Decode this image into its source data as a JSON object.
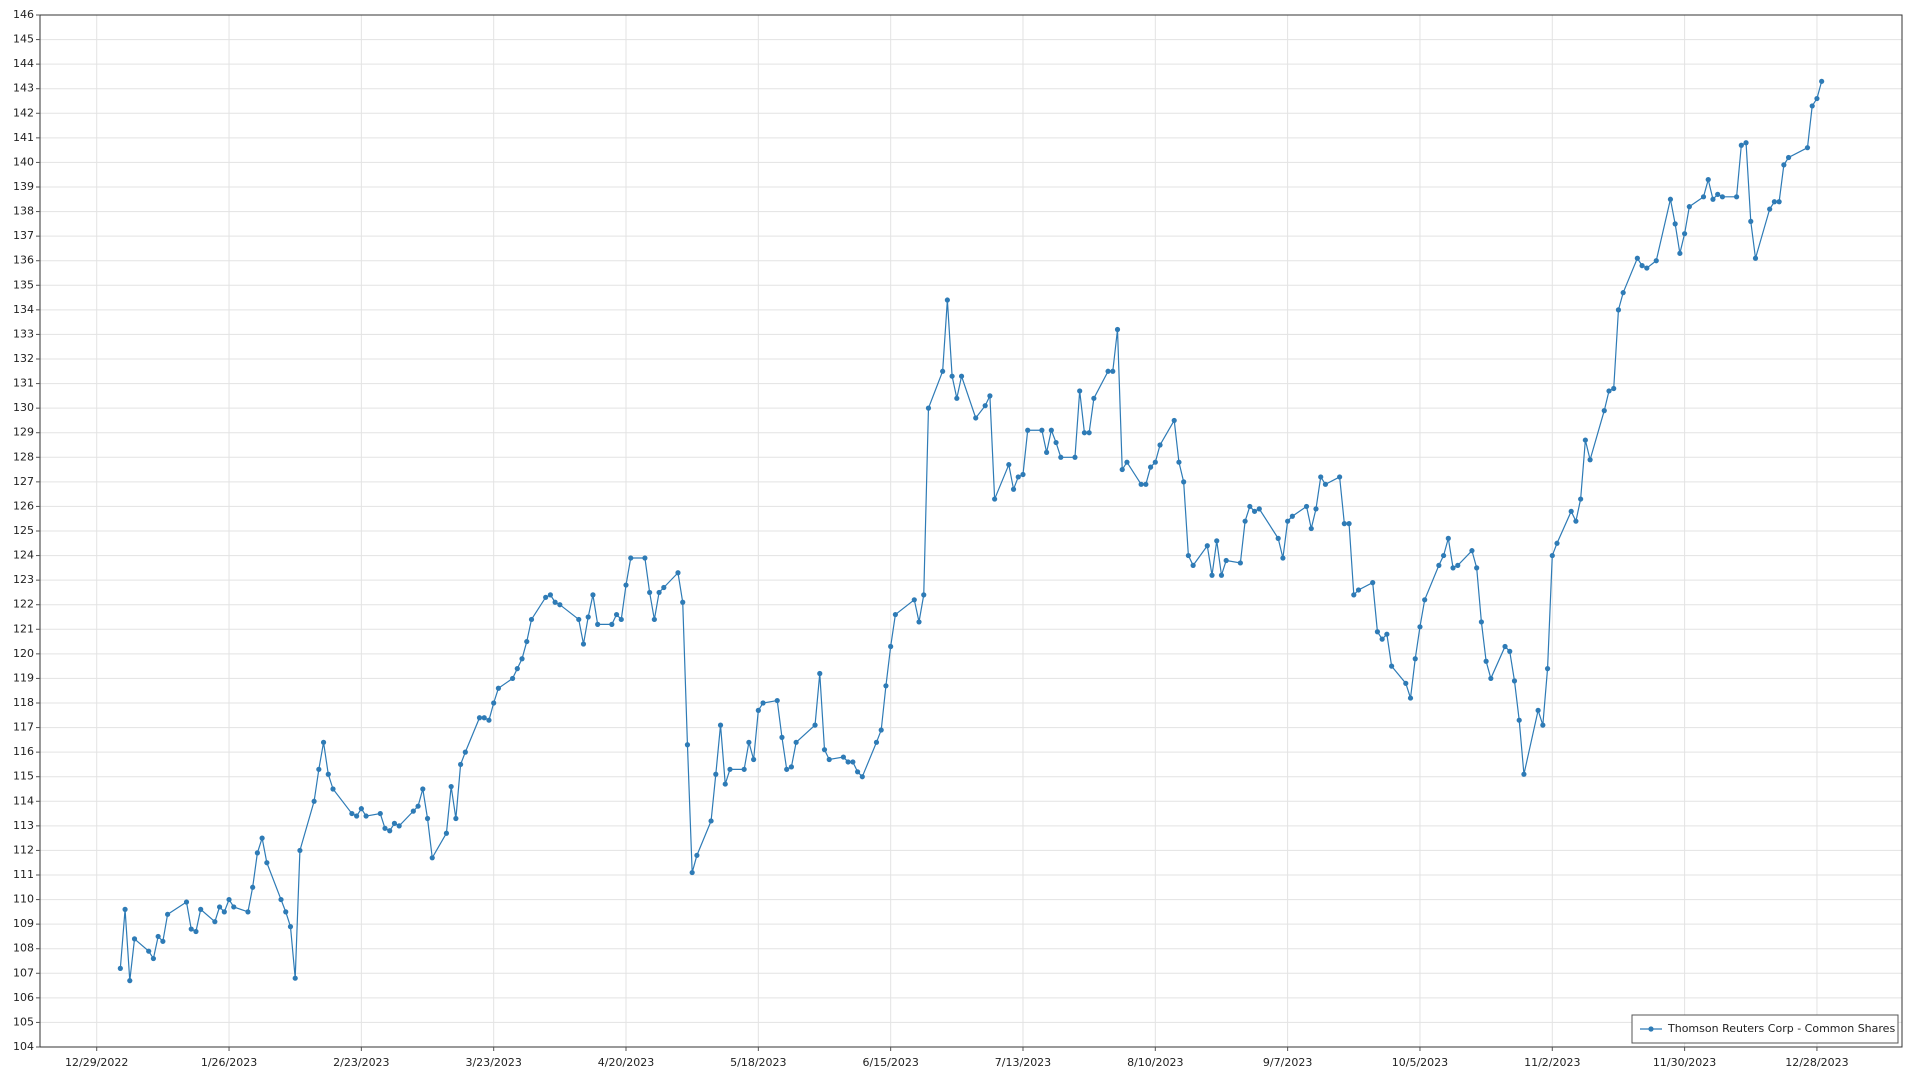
{
  "chart_data": {
    "type": "line",
    "x": [
      "2023-01-03",
      "2023-01-04",
      "2023-01-05",
      "2023-01-06",
      "2023-01-09",
      "2023-01-10",
      "2023-01-11",
      "2023-01-12",
      "2023-01-13",
      "2023-01-17",
      "2023-01-18",
      "2023-01-19",
      "2023-01-20",
      "2023-01-23",
      "2023-01-24",
      "2023-01-25",
      "2023-01-26",
      "2023-01-27",
      "2023-01-30",
      "2023-01-31",
      "2023-02-01",
      "2023-02-02",
      "2023-02-03",
      "2023-02-06",
      "2023-02-07",
      "2023-02-08",
      "2023-02-09",
      "2023-02-10",
      "2023-02-13",
      "2023-02-14",
      "2023-02-15",
      "2023-02-16",
      "2023-02-17",
      "2023-02-21",
      "2023-02-22",
      "2023-02-23",
      "2023-02-24",
      "2023-02-27",
      "2023-02-28",
      "2023-03-01",
      "2023-03-02",
      "2023-03-03",
      "2023-03-06",
      "2023-03-07",
      "2023-03-08",
      "2023-03-09",
      "2023-03-10",
      "2023-03-13",
      "2023-03-14",
      "2023-03-15",
      "2023-03-16",
      "2023-03-17",
      "2023-03-20",
      "2023-03-21",
      "2023-03-22",
      "2023-03-23",
      "2023-03-24",
      "2023-03-27",
      "2023-03-28",
      "2023-03-29",
      "2023-03-30",
      "2023-03-31",
      "2023-04-03",
      "2023-04-04",
      "2023-04-05",
      "2023-04-06",
      "2023-04-10",
      "2023-04-11",
      "2023-04-12",
      "2023-04-13",
      "2023-04-14",
      "2023-04-17",
      "2023-04-18",
      "2023-04-19",
      "2023-04-20",
      "2023-04-21",
      "2023-04-24",
      "2023-04-25",
      "2023-04-26",
      "2023-04-27",
      "2023-04-28",
      "2023-05-01",
      "2023-05-02",
      "2023-05-03",
      "2023-05-04",
      "2023-05-05",
      "2023-05-08",
      "2023-05-09",
      "2023-05-10",
      "2023-05-11",
      "2023-05-12",
      "2023-05-15",
      "2023-05-16",
      "2023-05-17",
      "2023-05-18",
      "2023-05-19",
      "2023-05-22",
      "2023-05-23",
      "2023-05-24",
      "2023-05-25",
      "2023-05-26",
      "2023-05-30",
      "2023-05-31",
      "2023-06-01",
      "2023-06-02",
      "2023-06-05",
      "2023-06-06",
      "2023-06-07",
      "2023-06-08",
      "2023-06-09",
      "2023-06-12",
      "2023-06-13",
      "2023-06-14",
      "2023-06-15",
      "2023-06-16",
      "2023-06-20",
      "2023-06-21",
      "2023-06-22",
      "2023-06-23",
      "2023-06-26",
      "2023-06-27",
      "2023-06-28",
      "2023-06-29",
      "2023-06-30",
      "2023-07-03",
      "2023-07-05",
      "2023-07-06",
      "2023-07-07",
      "2023-07-10",
      "2023-07-11",
      "2023-07-12",
      "2023-07-13",
      "2023-07-14",
      "2023-07-17",
      "2023-07-18",
      "2023-07-19",
      "2023-07-20",
      "2023-07-21",
      "2023-07-24",
      "2023-07-25",
      "2023-07-26",
      "2023-07-27",
      "2023-07-28",
      "2023-07-31",
      "2023-08-01",
      "2023-08-02",
      "2023-08-03",
      "2023-08-04",
      "2023-08-07",
      "2023-08-08",
      "2023-08-09",
      "2023-08-10",
      "2023-08-11",
      "2023-08-14",
      "2023-08-15",
      "2023-08-16",
      "2023-08-17",
      "2023-08-18",
      "2023-08-21",
      "2023-08-22",
      "2023-08-23",
      "2023-08-24",
      "2023-08-25",
      "2023-08-28",
      "2023-08-29",
      "2023-08-30",
      "2023-08-31",
      "2023-09-01",
      "2023-09-05",
      "2023-09-06",
      "2023-09-07",
      "2023-09-08",
      "2023-09-11",
      "2023-09-12",
      "2023-09-13",
      "2023-09-14",
      "2023-09-15",
      "2023-09-18",
      "2023-09-19",
      "2023-09-20",
      "2023-09-21",
      "2023-09-22",
      "2023-09-25",
      "2023-09-26",
      "2023-09-27",
      "2023-09-28",
      "2023-09-29",
      "2023-10-02",
      "2023-10-03",
      "2023-10-04",
      "2023-10-05",
      "2023-10-06",
      "2023-10-09",
      "2023-10-10",
      "2023-10-11",
      "2023-10-12",
      "2023-10-13",
      "2023-10-16",
      "2023-10-17",
      "2023-10-18",
      "2023-10-19",
      "2023-10-20",
      "2023-10-23",
      "2023-10-24",
      "2023-10-25",
      "2023-10-26",
      "2023-10-27",
      "2023-10-30",
      "2023-10-31",
      "2023-11-01",
      "2023-11-02",
      "2023-11-03",
      "2023-11-06",
      "2023-11-07",
      "2023-11-08",
      "2023-11-09",
      "2023-11-10",
      "2023-11-13",
      "2023-11-14",
      "2023-11-15",
      "2023-11-16",
      "2023-11-17",
      "2023-11-20",
      "2023-11-21",
      "2023-11-22",
      "2023-11-24",
      "2023-11-27",
      "2023-11-28",
      "2023-11-29",
      "2023-11-30",
      "2023-12-01",
      "2023-12-04",
      "2023-12-05",
      "2023-12-06",
      "2023-12-07",
      "2023-12-08",
      "2023-12-11",
      "2023-12-12",
      "2023-12-13",
      "2023-12-14",
      "2023-12-15",
      "2023-12-18",
      "2023-12-19",
      "2023-12-20",
      "2023-12-21",
      "2023-12-22",
      "2023-12-26",
      "2023-12-27",
      "2023-12-28",
      "2023-12-29"
    ],
    "series": [
      {
        "name": "Thomson Reuters Corp - Common Shares",
        "color": "#2e7bb6",
        "values": [
          107.2,
          109.6,
          106.7,
          108.4,
          107.9,
          107.6,
          108.5,
          108.3,
          109.4,
          109.9,
          108.8,
          108.7,
          109.6,
          109.1,
          109.7,
          109.5,
          110.0,
          109.7,
          109.5,
          110.5,
          111.9,
          112.5,
          111.5,
          110.0,
          109.5,
          108.9,
          106.8,
          112.0,
          114.0,
          115.3,
          116.4,
          115.1,
          114.5,
          113.5,
          113.4,
          113.7,
          113.4,
          113.5,
          112.9,
          112.8,
          113.1,
          113.0,
          113.6,
          113.8,
          114.5,
          113.3,
          111.7,
          112.7,
          114.6,
          113.3,
          115.5,
          116.0,
          117.4,
          117.4,
          117.3,
          118.0,
          118.6,
          119.0,
          119.4,
          119.8,
          120.5,
          121.4,
          122.3,
          122.4,
          122.1,
          122.0,
          121.4,
          120.4,
          121.5,
          122.4,
          121.2,
          121.2,
          121.6,
          121.4,
          122.8,
          123.9,
          123.9,
          122.5,
          121.4,
          122.5,
          122.7,
          123.3,
          122.1,
          116.3,
          111.1,
          111.8,
          113.2,
          115.1,
          117.1,
          114.7,
          115.3,
          115.3,
          116.4,
          115.7,
          117.7,
          118.0,
          118.1,
          116.6,
          115.3,
          115.4,
          116.4,
          117.1,
          119.2,
          116.1,
          115.7,
          115.8,
          115.6,
          115.6,
          115.2,
          115.0,
          116.4,
          116.9,
          118.7,
          120.3,
          121.6,
          122.2,
          121.3,
          122.4,
          130.0,
          131.5,
          134.4,
          131.3,
          130.4,
          131.3,
          129.6,
          130.1,
          130.5,
          126.3,
          127.7,
          126.7,
          127.2,
          127.3,
          129.1,
          129.1,
          128.2,
          129.1,
          128.6,
          128.0,
          128.0,
          130.7,
          129.0,
          129.0,
          130.4,
          131.5,
          131.5,
          133.2,
          127.5,
          127.8,
          126.9,
          126.9,
          127.6,
          127.8,
          128.5,
          129.5,
          127.8,
          127.0,
          124.0,
          123.6,
          124.4,
          123.2,
          124.6,
          123.2,
          123.8,
          123.7,
          125.4,
          126.0,
          125.8,
          125.9,
          124.7,
          123.9,
          125.4,
          125.6,
          126.0,
          125.1,
          125.9,
          127.2,
          126.9,
          127.2,
          125.3,
          125.3,
          122.4,
          122.6,
          122.9,
          120.9,
          120.6,
          120.8,
          119.5,
          118.8,
          118.2,
          119.8,
          121.1,
          122.2,
          123.6,
          124.0,
          124.7,
          123.5,
          123.6,
          124.2,
          123.5,
          121.3,
          119.7,
          119.0,
          120.3,
          120.1,
          118.9,
          117.3,
          115.1,
          117.7,
          117.1,
          119.4,
          124.0,
          124.5,
          125.8,
          125.4,
          126.3,
          128.7,
          127.9,
          129.9,
          130.7,
          130.8,
          134.0,
          134.7,
          136.1,
          135.8,
          135.7,
          136.0,
          138.5,
          137.5,
          136.3,
          137.1,
          138.2,
          138.6,
          139.3,
          138.5,
          138.7,
          138.6,
          138.6,
          140.7,
          140.8,
          137.6,
          136.1,
          138.1,
          138.4,
          138.4,
          139.9,
          140.2,
          140.6,
          142.3,
          142.6,
          143.3
        ]
      }
    ],
    "xlim": [
      "2022-12-17",
      "2024-01-15"
    ],
    "xticks": [
      {
        "value": "2022-12-29",
        "label": "12/29/2022"
      },
      {
        "value": "2023-01-26",
        "label": "1/26/2023"
      },
      {
        "value": "2023-02-23",
        "label": "2/23/2023"
      },
      {
        "value": "2023-03-23",
        "label": "3/23/2023"
      },
      {
        "value": "2023-04-20",
        "label": "4/20/2023"
      },
      {
        "value": "2023-05-18",
        "label": "5/18/2023"
      },
      {
        "value": "2023-06-15",
        "label": "6/15/2023"
      },
      {
        "value": "2023-07-13",
        "label": "7/13/2023"
      },
      {
        "value": "2023-08-10",
        "label": "8/10/2023"
      },
      {
        "value": "2023-09-07",
        "label": "9/7/2023"
      },
      {
        "value": "2023-10-05",
        "label": "10/5/2023"
      },
      {
        "value": "2023-11-02",
        "label": "11/2/2023"
      },
      {
        "value": "2023-11-30",
        "label": "11/30/2023"
      },
      {
        "value": "2023-12-28",
        "label": "12/28/2023"
      }
    ],
    "ylim": [
      104,
      146
    ],
    "yticks": [
      104,
      105,
      106,
      107,
      108,
      109,
      110,
      111,
      112,
      113,
      114,
      115,
      116,
      117,
      118,
      119,
      120,
      121,
      122,
      123,
      124,
      125,
      126,
      127,
      128,
      129,
      130,
      131,
      132,
      133,
      134,
      135,
      136,
      137,
      138,
      139,
      140,
      141,
      142,
      143,
      144,
      145,
      146
    ],
    "grid": true,
    "legend": "lower right"
  }
}
